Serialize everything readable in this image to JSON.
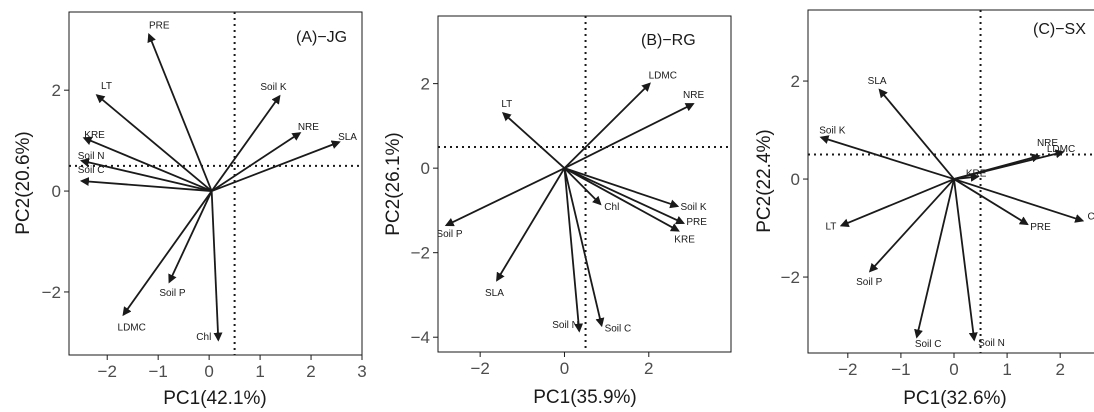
{
  "chart_data": [
    {
      "type": "scatter",
      "title": "(A)−JG",
      "xlabel": "PC1(42.1%)",
      "ylabel": "PC2(20.6%)",
      "xlim": [
        -2.75,
        3.0
      ],
      "ylim": [
        -3.25,
        3.55
      ],
      "xticks": [
        -2,
        -1,
        0,
        1,
        2,
        3
      ],
      "yticks": [
        -2,
        0,
        2
      ],
      "ref_lines": {
        "x": 0.5,
        "y": 0.5
      },
      "origin": [
        0.05,
        0.0
      ],
      "vectors": [
        {
          "label": "PRE",
          "x": -1.18,
          "y": 3.1
        },
        {
          "label": "LT",
          "x": -2.2,
          "y": 1.9
        },
        {
          "label": "KRE",
          "x": -2.45,
          "y": 1.05
        },
        {
          "label": "Soil N",
          "x": -2.5,
          "y": 0.6
        },
        {
          "label": "Soil C",
          "x": -2.5,
          "y": 0.2
        },
        {
          "label": "Soil K",
          "x": 1.38,
          "y": 1.88
        },
        {
          "label": "NRE",
          "x": 1.78,
          "y": 1.15
        },
        {
          "label": "SLA",
          "x": 2.55,
          "y": 0.97
        },
        {
          "label": "LDMC",
          "x": -1.68,
          "y": -2.45
        },
        {
          "label": "Soil P",
          "x": -0.78,
          "y": -1.8
        },
        {
          "label": "Chl",
          "x": 0.18,
          "y": -2.95
        }
      ]
    },
    {
      "type": "scatter",
      "title": "(B)−RG",
      "xlabel": "PC1(35.9%)",
      "ylabel": "PC2(26.1%)",
      "xlim": [
        -3.0,
        3.95
      ],
      "ylim": [
        -4.35,
        3.6
      ],
      "xticks": [
        -2,
        0,
        2
      ],
      "yticks": [
        -4,
        -2,
        0,
        2
      ],
      "ref_lines": {
        "x": 0.5,
        "y": 0.5
      },
      "origin": [
        0.0,
        0.0
      ],
      "vectors": [
        {
          "label": "LDMC",
          "x": 2.02,
          "y": 2.0
        },
        {
          "label": "NRE",
          "x": 3.05,
          "y": 1.52
        },
        {
          "label": "LT",
          "x": -1.45,
          "y": 1.3
        },
        {
          "label": "Soil P",
          "x": -2.8,
          "y": -1.35
        },
        {
          "label": "SLA",
          "x": -1.6,
          "y": -2.65
        },
        {
          "label": "Chl",
          "x": 0.85,
          "y": -0.85
        },
        {
          "label": "Soil K",
          "x": 2.68,
          "y": -0.9
        },
        {
          "label": "PRE",
          "x": 2.82,
          "y": -1.3
        },
        {
          "label": "KRE",
          "x": 2.7,
          "y": -1.48
        },
        {
          "label": "Soil N",
          "x": 0.35,
          "y": -3.85
        },
        {
          "label": "Soil C",
          "x": 0.88,
          "y": -3.72
        }
      ]
    },
    {
      "type": "scatter",
      "title": "(C)−SX",
      "xlabel": "PC1(32.6%)",
      "ylabel": "PC2(22.4%)",
      "xlim": [
        -2.75,
        2.75
      ],
      "ylim": [
        -3.55,
        3.45
      ],
      "xticks": [
        -2,
        -1,
        0,
        1,
        2
      ],
      "yticks": [
        -2,
        0,
        2
      ],
      "ref_lines": {
        "x": 0.5,
        "y": 0.5
      },
      "origin": [
        0.0,
        0.0
      ],
      "vectors": [
        {
          "label": "SLA",
          "x": -1.4,
          "y": 1.82
        },
        {
          "label": "Soil K",
          "x": -2.5,
          "y": 0.85
        },
        {
          "label": "NRE",
          "x": 1.6,
          "y": 0.47
        },
        {
          "label": "LDMC",
          "x": 2.05,
          "y": 0.55
        },
        {
          "label": "KRE",
          "x": 0.45,
          "y": 0.05
        },
        {
          "label": "LT",
          "x": -2.12,
          "y": -0.95
        },
        {
          "label": "Soil P",
          "x": -1.58,
          "y": -1.88
        },
        {
          "label": "Soil C",
          "x": -0.7,
          "y": -3.22
        },
        {
          "label": "Soil N",
          "x": 0.38,
          "y": -3.28
        },
        {
          "label": "PRE",
          "x": 1.38,
          "y": -0.92
        },
        {
          "label": "Chl",
          "x": 2.42,
          "y": -0.85
        }
      ]
    }
  ]
}
